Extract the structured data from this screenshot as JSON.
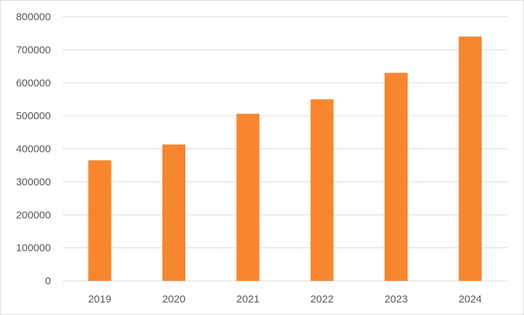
{
  "chart_data": {
    "type": "bar",
    "title": "",
    "xlabel": "",
    "ylabel": "",
    "categories": [
      "2019",
      "2020",
      "2021",
      "2022",
      "2023",
      "2024"
    ],
    "values": [
      365000,
      413000,
      506000,
      550000,
      630000,
      740000
    ],
    "ylim": [
      0,
      800000
    ],
    "yticks": [
      "0",
      "100000",
      "200000",
      "300000",
      "400000",
      "500000",
      "600000",
      "700000",
      "800000"
    ],
    "grid": true,
    "legend": "none",
    "colors": {
      "bar": "#F7862F",
      "grid": "#d9d9d9",
      "axis": "#d9d9d9",
      "text": "#595959"
    }
  }
}
